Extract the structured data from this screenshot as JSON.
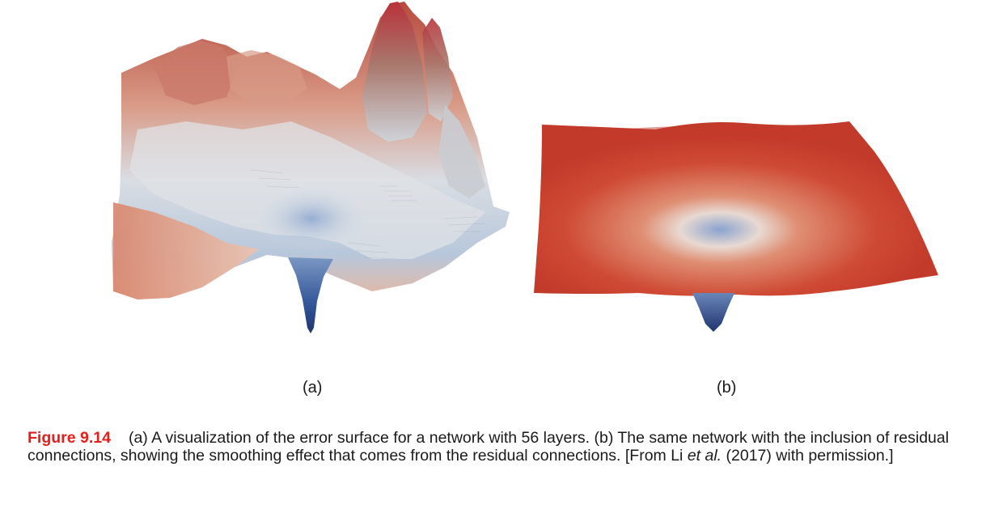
{
  "figure": {
    "panel_a_label": "(a)",
    "panel_b_label": "(b)",
    "caption": {
      "number": "Figure 9.14",
      "text_part1": "(a) A visualization of the error surface for a network with 56 layers. (b) The same network with the inclusion of residual connections, showing the smoothing effect that comes from the residual connections. [From Li ",
      "text_italic": "et al.",
      "text_part2": " (2017) with permission.]"
    }
  },
  "colors": {
    "surface_high": "#c0392b",
    "surface_mid": "#e8c2b4",
    "surface_low": "#2f4e8c",
    "caption_accent": "#e3201b"
  }
}
